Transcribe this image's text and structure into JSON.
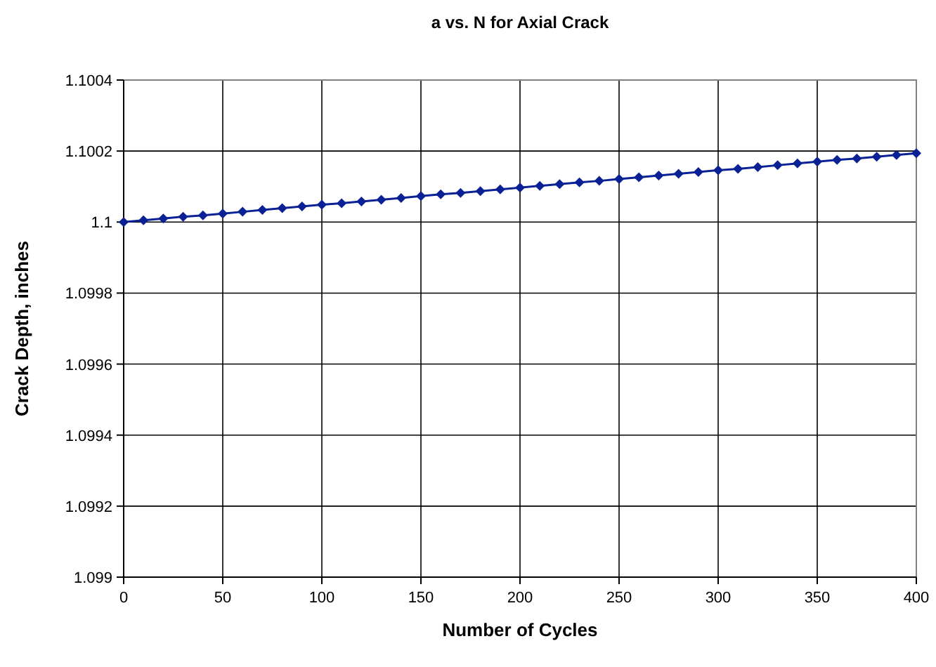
{
  "chart_data": {
    "type": "line",
    "title": "a vs. N for Axial Crack",
    "xlabel": "Number of Cycles",
    "ylabel": "Crack Depth, inches",
    "x": [
      0,
      10,
      20,
      30,
      40,
      50,
      60,
      70,
      80,
      90,
      100,
      110,
      120,
      130,
      140,
      150,
      160,
      170,
      180,
      190,
      200,
      210,
      220,
      230,
      240,
      250,
      260,
      270,
      280,
      290,
      300,
      310,
      320,
      330,
      340,
      350,
      360,
      370,
      380,
      390,
      400
    ],
    "series": [
      {
        "color": "#0a2196",
        "values": [
          1.1,
          1.100005,
          1.10001,
          1.100015,
          1.100019,
          1.100024,
          1.100029,
          1.100034,
          1.100039,
          1.100044,
          1.100049,
          1.100053,
          1.100058,
          1.100063,
          1.100068,
          1.100073,
          1.100078,
          1.100082,
          1.100087,
          1.100092,
          1.100097,
          1.100102,
          1.100107,
          1.100112,
          1.100116,
          1.100121,
          1.100126,
          1.100131,
          1.100136,
          1.100141,
          1.100146,
          1.10015,
          1.100155,
          1.10016,
          1.100165,
          1.10017,
          1.100175,
          1.100179,
          1.100184,
          1.100189,
          1.100194
        ]
      }
    ],
    "xlim": [
      0,
      400
    ],
    "xticks": [
      0,
      50,
      100,
      150,
      200,
      250,
      300,
      350,
      400
    ],
    "ylim": [
      1.099,
      1.1004
    ],
    "yticks": [
      1.099,
      1.0992,
      1.0994,
      1.0996,
      1.0998,
      1.1,
      1.1002,
      1.1004
    ],
    "grid": true,
    "marker": "diamond",
    "line_style": "solid"
  }
}
